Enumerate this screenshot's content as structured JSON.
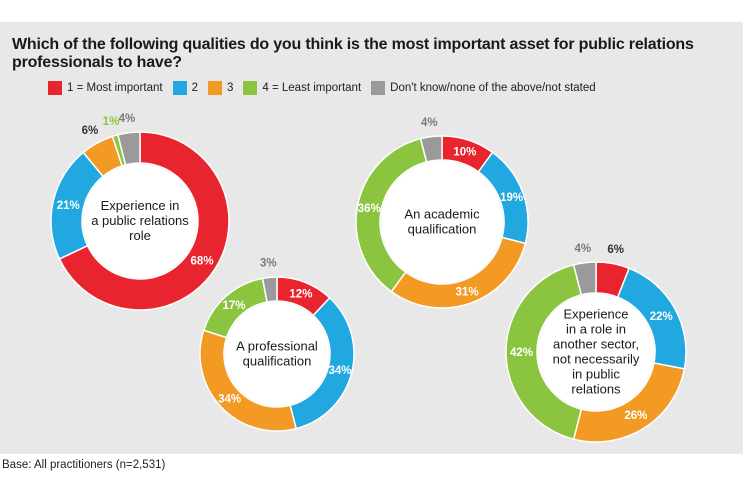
{
  "title": "Which of the following qualities do you think is the most important asset for public relations professionals to have?",
  "footer": "Base: All practitioners (n=2,531)",
  "legend": [
    {
      "label": "1 = Most important",
      "color": "#e8242e"
    },
    {
      "label": "2",
      "color": "#22a8e0"
    },
    {
      "label": "3",
      "color": "#f39a25"
    },
    {
      "label": "4 = Least important",
      "color": "#8bc53f"
    },
    {
      "label": "Don't know/none of the above/not stated",
      "color": "#9a9a9a"
    }
  ],
  "chart_data": [
    {
      "type": "pie",
      "donut": true,
      "center_label": [
        "Experience in",
        "a public relations",
        "role"
      ],
      "categories": [
        "1 = Most important",
        "2",
        "3",
        "4 = Least important",
        "Don't know/none of the above/not stated"
      ],
      "values": [
        68,
        21,
        6,
        1,
        4
      ],
      "labels": [
        "68%",
        "21%",
        "6%",
        "1%",
        "4%"
      ]
    },
    {
      "type": "pie",
      "donut": true,
      "center_label": [
        "A professional",
        "qualification"
      ],
      "categories": [
        "1 = Most important",
        "2",
        "3",
        "4 = Least important",
        "Don't know/none of the above/not stated"
      ],
      "values": [
        12,
        34,
        34,
        17,
        3
      ],
      "labels": [
        "12%",
        "34%",
        "34%",
        "17%",
        "3%"
      ]
    },
    {
      "type": "pie",
      "donut": true,
      "center_label": [
        "An academic",
        "qualification"
      ],
      "categories": [
        "1 = Most important",
        "2",
        "3",
        "4 = Least important",
        "Don't know/none of the above/not stated"
      ],
      "values": [
        10,
        19,
        31,
        36,
        4
      ],
      "labels": [
        "10%",
        "19%",
        "31%",
        "36%",
        "4%"
      ]
    },
    {
      "type": "pie",
      "donut": true,
      "center_label": [
        "Experience",
        "in a role in",
        "another sector,",
        "not necessarily",
        "in public",
        "relations"
      ],
      "categories": [
        "1 = Most important",
        "2",
        "3",
        "4 = Least important",
        "Don't know/none of the above/not stated"
      ],
      "values": [
        6,
        22,
        26,
        42,
        4
      ],
      "labels": [
        "6%",
        "22%",
        "26%",
        "42%",
        "4%"
      ]
    }
  ]
}
